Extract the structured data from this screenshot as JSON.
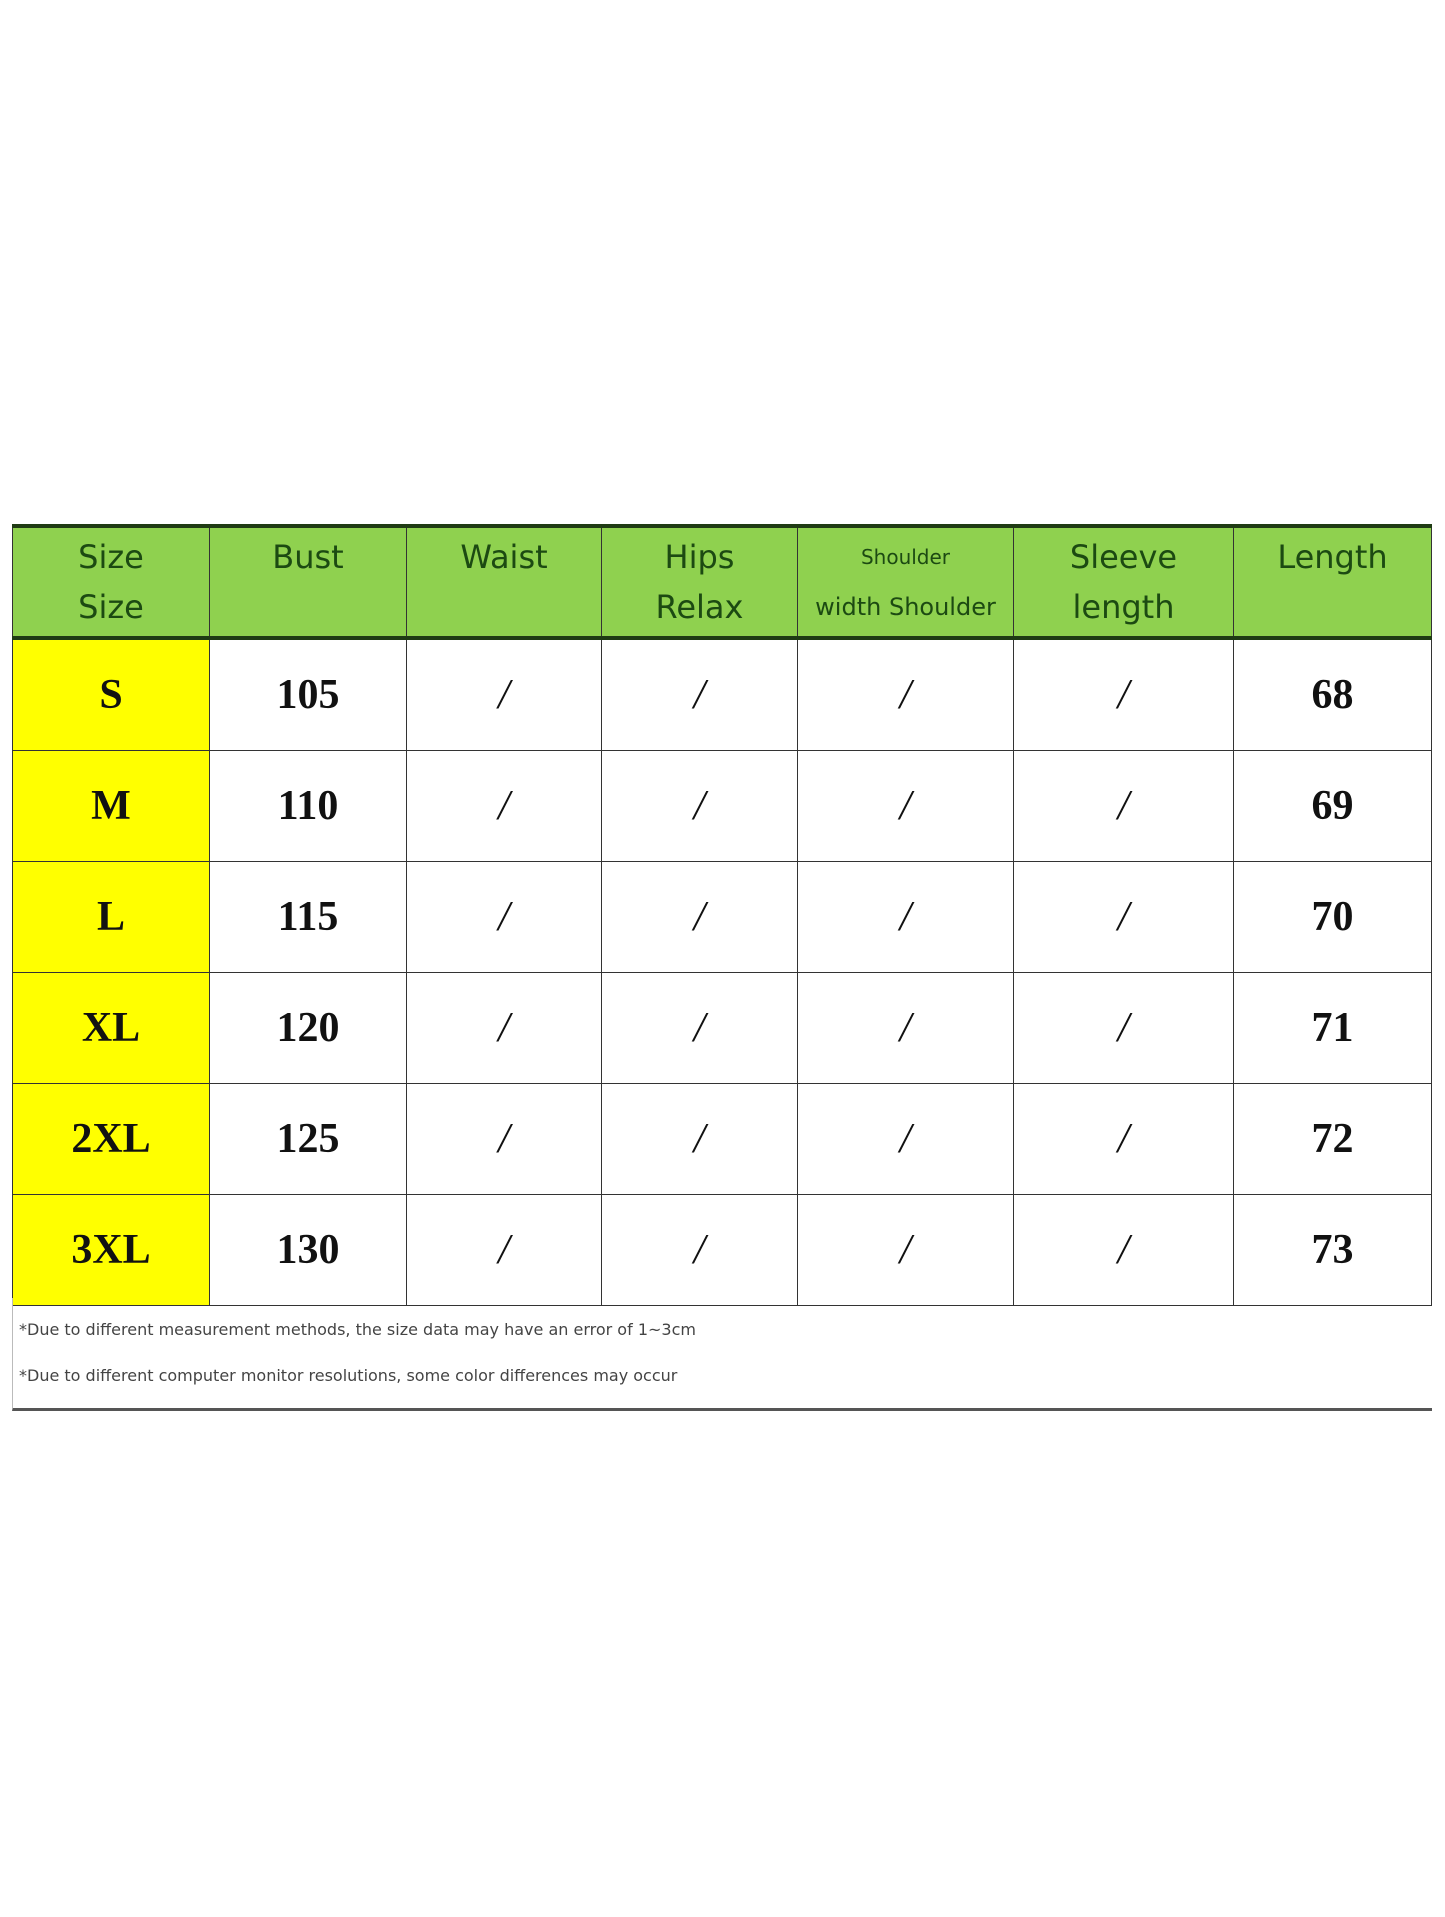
{
  "headers": [
    [
      "Size",
      "Size"
    ],
    [
      "Bust",
      ""
    ],
    [
      "Waist",
      ""
    ],
    [
      "Hips",
      "Relax"
    ],
    [
      "Shoulder",
      "width Shoulder"
    ],
    [
      "Sleeve",
      "length"
    ],
    [
      "Length",
      ""
    ]
  ],
  "rows": [
    [
      "S",
      "105",
      "/",
      "/",
      "/",
      "/",
      "68"
    ],
    [
      "M",
      "110",
      "/",
      "/",
      "/",
      "/",
      "69"
    ],
    [
      "L",
      "115",
      "/",
      "/",
      "/",
      "/",
      "70"
    ],
    [
      "XL",
      "120",
      "/",
      "/",
      "/",
      "/",
      "71"
    ],
    [
      "2XL",
      "125",
      "/",
      "/",
      "/",
      "/",
      "72"
    ],
    [
      "3XL",
      "130",
      "/",
      "/",
      "/",
      "/",
      "73"
    ]
  ],
  "notes": [
    "*Due to different measurement methods, the size data may have an error of 1~3cm",
    "*Due to different computer monitor resolutions, some color differences may occur"
  ],
  "colors": {
    "header_bg": "#8fd14f",
    "size_col_bg": "#ffff00",
    "header_text": "#1c4a12"
  }
}
